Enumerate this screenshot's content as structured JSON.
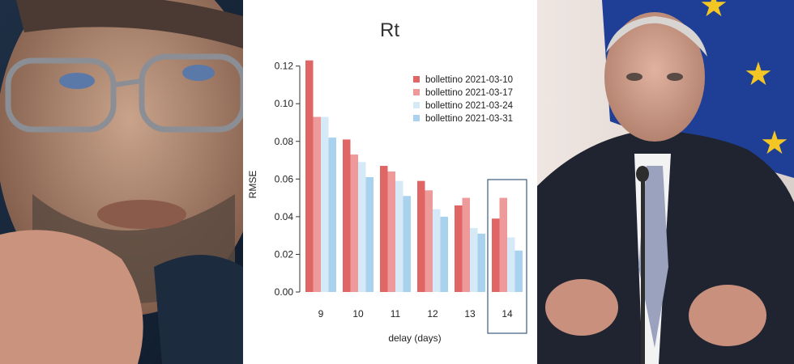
{
  "chart_data": {
    "type": "bar",
    "title": "Rt",
    "xlabel": "delay (days)",
    "ylabel": "RMSE",
    "categories": [
      "9",
      "10",
      "11",
      "12",
      "13",
      "14"
    ],
    "ylim": [
      0,
      0.125
    ],
    "yticks": [
      "0.00",
      "0.02",
      "0.04",
      "0.06",
      "0.08",
      "0.10",
      "0.12"
    ],
    "highlighted_category": "14",
    "legend_position": "top-right",
    "grid": false,
    "series": [
      {
        "name": "bollettino 2021-03-10",
        "color": "#e06666",
        "values": [
          0.123,
          0.081,
          0.067,
          0.059,
          0.046,
          0.039
        ]
      },
      {
        "name": "bollettino 2021-03-17",
        "color": "#ef9a9a",
        "values": [
          0.093,
          0.073,
          0.064,
          0.054,
          0.05,
          0.05
        ]
      },
      {
        "name": "bollettino 2021-03-24",
        "color": "#d5e9f7",
        "values": [
          0.093,
          0.069,
          0.059,
          0.044,
          0.034,
          0.029
        ]
      },
      {
        "name": "bollettino 2021-03-31",
        "color": "#a9d2ef",
        "values": [
          0.082,
          0.061,
          0.051,
          0.04,
          0.031,
          0.022
        ]
      }
    ]
  }
}
